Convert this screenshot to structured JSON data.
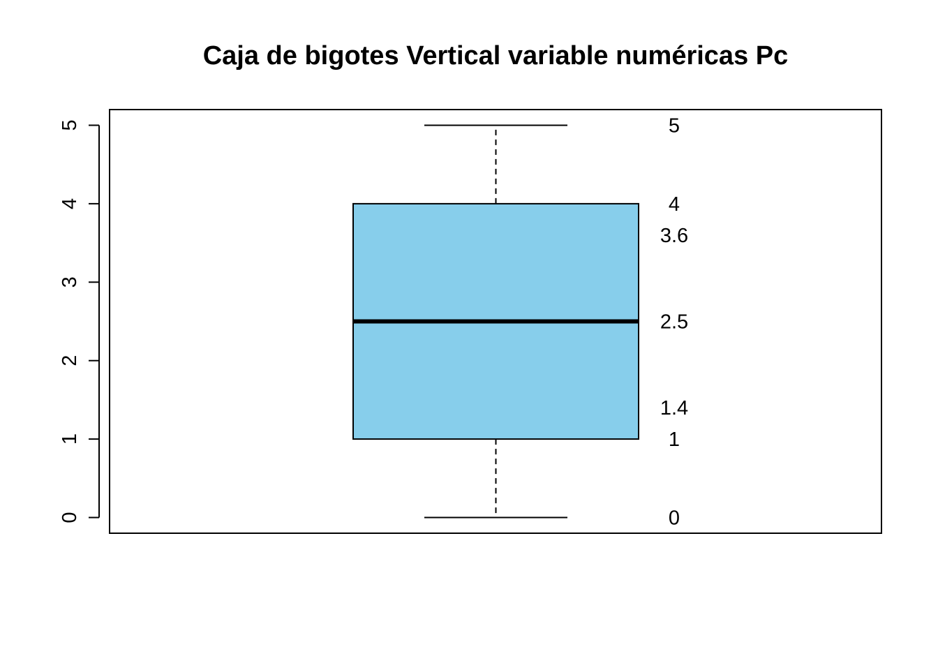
{
  "chart_data": {
    "type": "boxplot",
    "title": "Caja de bigotes Vertical variable numéricas Pc",
    "xlabel": "",
    "ylabel": "",
    "ylim": [
      -0.2,
      5.2
    ],
    "y_ticks": [
      0,
      1,
      2,
      3,
      4,
      5
    ],
    "grid": false,
    "box": {
      "min": 0,
      "q1": 1,
      "median": 2.5,
      "q3": 4,
      "max": 5,
      "fill_color": "#87ceeb"
    },
    "annotations": [
      {
        "value": 5,
        "text": "5"
      },
      {
        "value": 4,
        "text": "4"
      },
      {
        "value": 3.6,
        "text": "3.6"
      },
      {
        "value": 2.5,
        "text": "2.5"
      },
      {
        "value": 1.4,
        "text": "1.4"
      },
      {
        "value": 1,
        "text": "1"
      },
      {
        "value": 0,
        "text": "0"
      }
    ]
  }
}
